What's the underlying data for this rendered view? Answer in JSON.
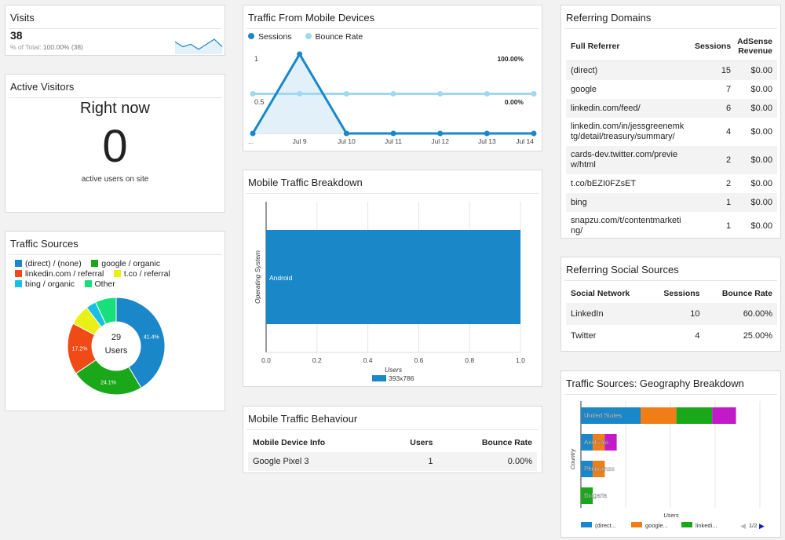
{
  "visits": {
    "title": "Visits",
    "value": "38",
    "total_label": "% of Total:",
    "total_value": "100.00% (38)",
    "sparkline": [
      4,
      2,
      3,
      1,
      3,
      5,
      2
    ]
  },
  "active": {
    "title": "Active Visitors",
    "heading": "Right now",
    "count": "0",
    "caption": "active users on site"
  },
  "sources": {
    "title": "Traffic Sources",
    "legend": [
      {
        "label": "(direct) / (none)",
        "color": "#1a87c9"
      },
      {
        "label": "google / organic",
        "color": "#1aa81a"
      },
      {
        "label": "linkedin.com / referral",
        "color": "#f04a17"
      },
      {
        "label": "t.co / referral",
        "color": "#e8f017"
      },
      {
        "label": "bing / organic",
        "color": "#17bfe0"
      },
      {
        "label": "Other",
        "color": "#17e07a"
      }
    ],
    "center_value": "29",
    "center_label": "Users",
    "slices": [
      {
        "value": 41.4,
        "color": "#1a87c9",
        "label": "41.4%"
      },
      {
        "value": 24.1,
        "color": "#1aa81a",
        "label": "24.1%"
      },
      {
        "value": 17.2,
        "color": "#f04a17",
        "label": "17.2%"
      },
      {
        "value": 6.9,
        "color": "#e8f017",
        "label": ""
      },
      {
        "value": 3.4,
        "color": "#17bfe0",
        "label": ""
      },
      {
        "value": 7.0,
        "color": "#17e07a",
        "label": ""
      }
    ]
  },
  "mobile_traffic": {
    "title": "Traffic From Mobile Devices",
    "legend_sessions": "Sessions",
    "legend_bounce": "Bounce Rate",
    "color_sessions": "#1a87c9",
    "color_bounce": "#9fd8ef",
    "y_left_top": "1",
    "y_left_mid": "0.5",
    "y_right_top": "100.00%",
    "y_right_mid": "0.00%",
    "x_labels": [
      "...",
      "Jul 9",
      "Jul 10",
      "Jul 11",
      "Jul 12",
      "Jul 13",
      "Jul 14"
    ],
    "sessions": [
      0,
      1,
      0,
      0,
      0,
      0,
      0
    ],
    "bounce_rate": [
      0.5,
      0.5,
      0.5,
      0.5,
      0.5,
      0.5,
      0.5
    ]
  },
  "breakdown": {
    "title": "Mobile Traffic Breakdown",
    "y_axis_label": "Operating System",
    "x_axis_label": "Users",
    "bar_label": "Android",
    "bar_value": 1.0,
    "bar_color": "#1a87c9",
    "ticks": [
      "0.0",
      "0.2",
      "0.4",
      "0.6",
      "0.8",
      "1.0"
    ],
    "legend": "393x786"
  },
  "behaviour": {
    "title": "Mobile Traffic Behaviour",
    "columns": [
      "Mobile Device Info",
      "Users",
      "Bounce Rate"
    ],
    "rows": [
      {
        "device": "Google Pixel 3",
        "users": "1",
        "bounce": "0.00%"
      }
    ]
  },
  "domains": {
    "title": "Referring Domains",
    "col_referrer": "Full Referrer",
    "col_sessions": "Sessions",
    "col_revenue": "AdSense Revenue",
    "rows": [
      {
        "ref": "(direct)",
        "sessions": "15",
        "rev": "$0.00"
      },
      {
        "ref": "google",
        "sessions": "7",
        "rev": "$0.00"
      },
      {
        "ref": "linkedin.com/feed/",
        "sessions": "6",
        "rev": "$0.00"
      },
      {
        "ref": "linkedin.com/in/jessgreenemktg/detail/treasury/summary/",
        "sessions": "4",
        "rev": "$0.00"
      },
      {
        "ref": "cards-dev.twitter.com/preview/html",
        "sessions": "2",
        "rev": "$0.00"
      },
      {
        "ref": "t.co/bEZI0FZsET",
        "sessions": "2",
        "rev": "$0.00"
      },
      {
        "ref": "bing",
        "sessions": "1",
        "rev": "$0.00"
      },
      {
        "ref": "snapzu.com/t/contentmarketing/",
        "sessions": "1",
        "rev": "$0.00"
      }
    ]
  },
  "social": {
    "title": "Referring Social Sources",
    "col_network": "Social Network",
    "col_sessions": "Sessions",
    "col_bounce": "Bounce Rate",
    "rows": [
      {
        "network": "LinkedIn",
        "sessions": "10",
        "bounce": "60.00%"
      },
      {
        "network": "Twitter",
        "sessions": "4",
        "bounce": "25.00%"
      }
    ]
  },
  "geo": {
    "title": "Traffic Sources: Geography Breakdown",
    "y_axis_label": "Country",
    "x_axis_label": "Users",
    "legend": [
      {
        "label": "(direct...",
        "color": "#1a87c9"
      },
      {
        "label": "google...",
        "color": "#f07d17"
      },
      {
        "label": "linkedi...",
        "color": "#1aa81a"
      }
    ],
    "pager": "1/2",
    "countries": [
      {
        "name": "United States",
        "segments": [
          5,
          3,
          3,
          2
        ]
      },
      {
        "name": "Australia",
        "segments": [
          1,
          1,
          0,
          1
        ]
      },
      {
        "name": "Philippines",
        "segments": [
          1,
          1,
          0,
          0
        ]
      },
      {
        "name": "Bulgaria",
        "segments": [
          0,
          0,
          1,
          0
        ]
      }
    ],
    "segment_colors": [
      "#1a87c9",
      "#f07d17",
      "#1aa81a",
      "#c21ac9"
    ],
    "x_max": 15
  }
}
